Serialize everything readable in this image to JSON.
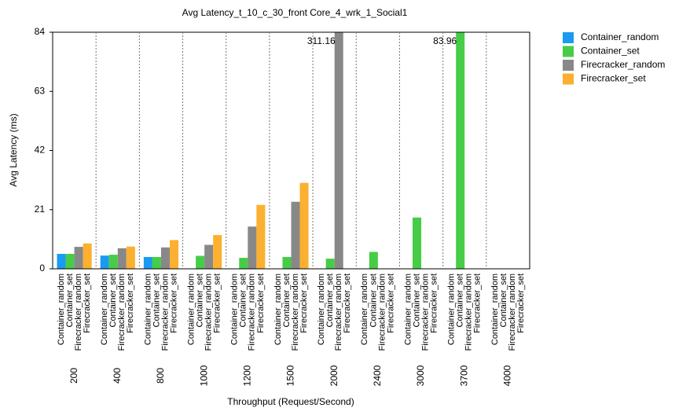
{
  "chart_data": {
    "type": "bar",
    "title": "Avg Latency_t_10_c_30_front Core_4_wrk_1_Social1",
    "x_label": "Throughput (Request/Second)",
    "y_label": "Avg Latency (ms)",
    "categories": [
      "200",
      "400",
      "800",
      "1000",
      "1200",
      "1500",
      "2000",
      "2400",
      "3000",
      "3700",
      "4000"
    ],
    "series": [
      {
        "name": "Container_random",
        "color": "#1a9af0",
        "values": [
          5.3,
          4.7,
          4.2,
          null,
          null,
          null,
          null,
          null,
          null,
          null,
          null
        ]
      },
      {
        "name": "Container_set",
        "color": "#47cc47",
        "values": [
          5.3,
          5.0,
          4.2,
          4.6,
          3.9,
          4.2,
          3.6,
          6.0,
          18.2,
          83.96,
          null
        ],
        "value_labels": [
          null,
          null,
          null,
          null,
          null,
          null,
          null,
          null,
          null,
          "83.96",
          null
        ]
      },
      {
        "name": "Firecracker_random",
        "color": "#888888",
        "values": [
          7.8,
          7.3,
          7.6,
          8.5,
          15.0,
          23.8,
          311.16,
          null,
          null,
          null,
          null
        ],
        "value_labels": [
          null,
          null,
          null,
          null,
          null,
          null,
          "311.16",
          null,
          null,
          null,
          null
        ]
      },
      {
        "name": "Firecracker_set",
        "color": "#fbb030",
        "values": [
          9.0,
          7.9,
          10.2,
          12.0,
          22.7,
          30.5,
          null,
          null,
          null,
          null,
          null
        ]
      }
    ],
    "ylim": [
      0,
      84
    ],
    "yticks": [
      0,
      21,
      42,
      63,
      84
    ],
    "legend": "outside-right",
    "group_dividers": true
  }
}
